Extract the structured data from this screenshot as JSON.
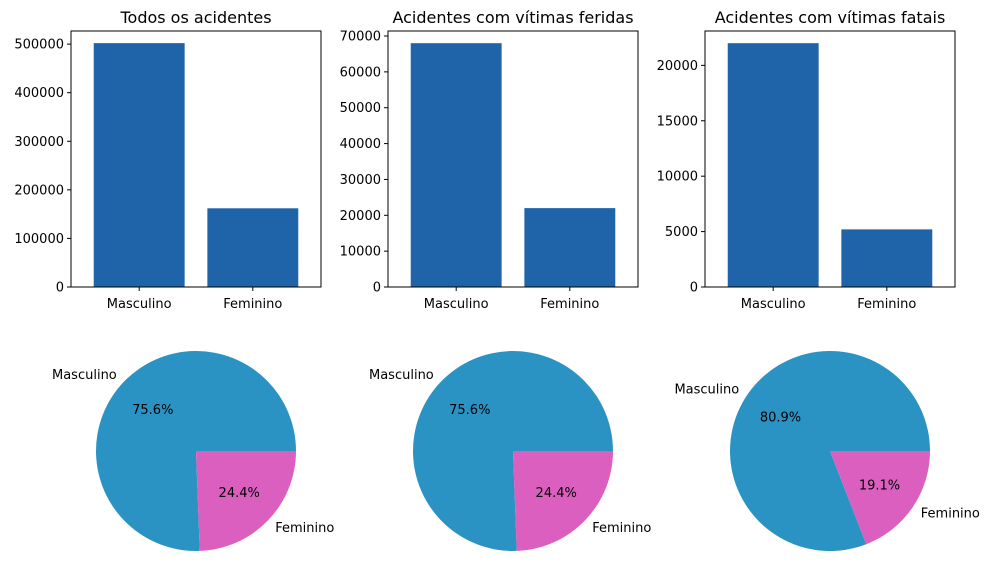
{
  "colors": {
    "bar": "#1f63a8",
    "pie_masculino": "#2b93c4",
    "pie_feminino": "#db5fbf"
  },
  "chart_data": [
    {
      "type": "bar",
      "title": "Todos os acidentes",
      "categories": [
        "Masculino",
        "Feminino"
      ],
      "values": [
        502000,
        162000
      ],
      "ylim": [
        0,
        527000
      ],
      "yticks": [
        0,
        100000,
        200000,
        300000,
        400000,
        500000
      ],
      "ytick_labels": [
        "0",
        "100000",
        "200000",
        "300000",
        "400000",
        "500000"
      ]
    },
    {
      "type": "bar",
      "title": "Acidentes com vítimas feridas",
      "categories": [
        "Masculino",
        "Feminino"
      ],
      "values": [
        68000,
        22000
      ],
      "ylim": [
        0,
        71400
      ],
      "yticks": [
        0,
        10000,
        20000,
        30000,
        40000,
        50000,
        60000,
        70000
      ],
      "ytick_labels": [
        "0",
        "10000",
        "20000",
        "30000",
        "40000",
        "50000",
        "60000",
        "70000"
      ]
    },
    {
      "type": "bar",
      "title": "Acidentes com vítimas fatais",
      "categories": [
        "Masculino",
        "Feminino"
      ],
      "values": [
        22000,
        5200
      ],
      "ylim": [
        0,
        23100
      ],
      "yticks": [
        0,
        5000,
        10000,
        15000,
        20000
      ],
      "ytick_labels": [
        "0",
        "5000",
        "10000",
        "15000",
        "20000"
      ]
    },
    {
      "type": "pie",
      "labels": [
        "Masculino",
        "Feminino"
      ],
      "values": [
        75.6,
        24.4
      ],
      "pct_labels": [
        "75.6%",
        "24.4%"
      ]
    },
    {
      "type": "pie",
      "labels": [
        "Masculino",
        "Feminino"
      ],
      "values": [
        75.6,
        24.4
      ],
      "pct_labels": [
        "75.6%",
        "24.4%"
      ]
    },
    {
      "type": "pie",
      "labels": [
        "Masculino",
        "Feminino"
      ],
      "values": [
        80.9,
        19.1
      ],
      "pct_labels": [
        "80.9%",
        "19.1%"
      ]
    }
  ]
}
